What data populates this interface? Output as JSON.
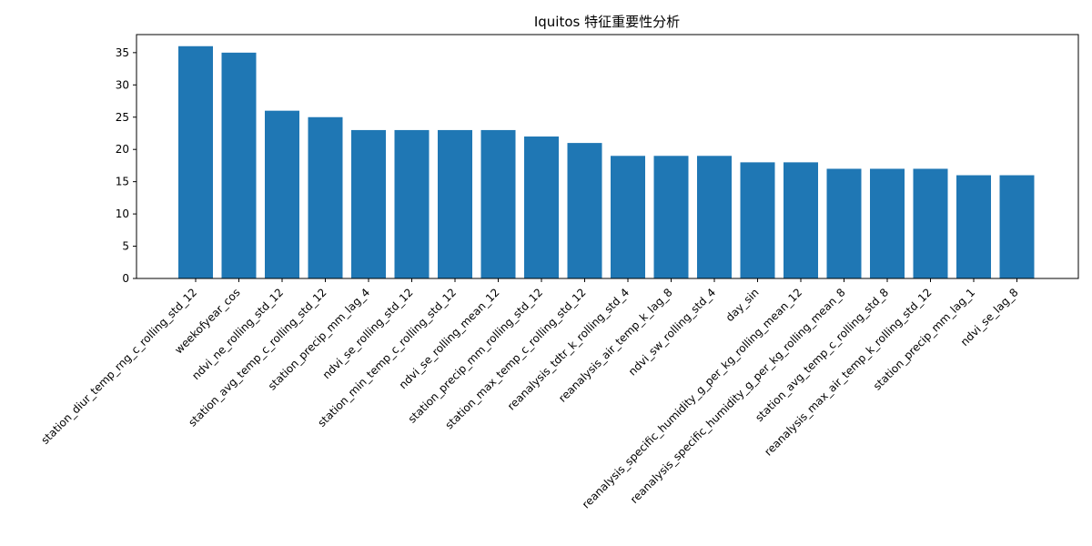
{
  "chart_data": {
    "type": "bar",
    "title": "Iquitos 特征重要性分析",
    "xlabel": "",
    "ylabel": "",
    "ylim": [
      0,
      37.8
    ],
    "yticks": [
      0,
      5,
      10,
      15,
      20,
      25,
      30,
      35
    ],
    "bar_color": "#1f77b4",
    "grid": false,
    "categories": [
      "station_diur_temp_rng_c_rolling_std_12",
      "weekofyear_cos",
      "ndvi_ne_rolling_std_12",
      "station_avg_temp_c_rolling_std_12",
      "station_precip_mm_lag_4",
      "ndvi_se_rolling_std_12",
      "station_min_temp_c_rolling_std_12",
      "ndvi_se_rolling_mean_12",
      "station_precip_mm_rolling_std_12",
      "station_max_temp_c_rolling_std_12",
      "reanalysis_tdtr_k_rolling_std_4",
      "reanalysis_air_temp_k_lag_8",
      "ndvi_sw_rolling_std_4",
      "day_sin",
      "reanalysis_specific_humidity_g_per_kg_rolling_mean_12",
      "reanalysis_specific_humidity_g_per_kg_rolling_mean_8",
      "station_avg_temp_c_rolling_std_8",
      "reanalysis_max_air_temp_k_rolling_std_12",
      "station_precip_mm_lag_1",
      "ndvi_se_lag_8"
    ],
    "values": [
      36,
      35,
      26,
      25,
      23,
      23,
      23,
      23,
      22,
      21,
      19,
      19,
      19,
      18,
      18,
      17,
      17,
      17,
      16,
      16
    ]
  }
}
